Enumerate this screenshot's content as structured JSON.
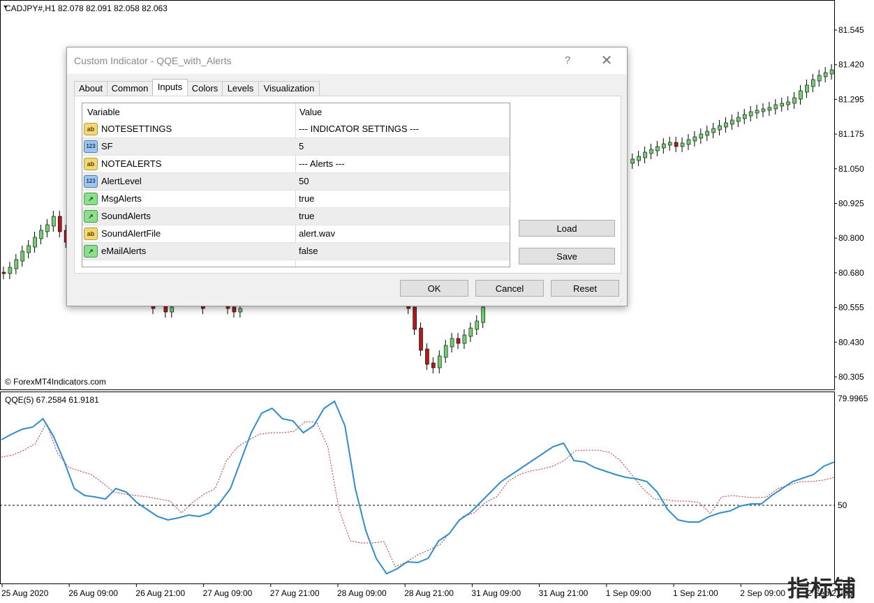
{
  "chart": {
    "header": "CADJPY#,H1  82.078 82.091 82.058 82.063",
    "watermark": "© ForexMT4Indicators.com",
    "price_axis": [
      "81.545",
      "81.420",
      "81.295",
      "81.175",
      "81.050",
      "80.925",
      "80.800",
      "80.680",
      "80.555",
      "80.430",
      "80.305"
    ],
    "indicator_header": "QQE(5) 67.2584 61.9181",
    "indicator_top_value": "79.9965",
    "indicator_level": "50",
    "time_axis": [
      "25 Aug 2020",
      "26 Aug 09:00",
      "26 Aug 21:00",
      "27 Aug 09:00",
      "27 Aug 21:00",
      "28 Aug 09:00",
      "28 Aug 21:00",
      "31 Aug 09:00",
      "31 Aug 21:00",
      "1 Sep 09:00",
      "1 Sep 21:00",
      "2 Sep 09:00",
      "2 Sep 21:00"
    ],
    "colors": {
      "bull": "#6fcf6f",
      "bear": "#b01c1c",
      "qqe_line": "#2f8ccf",
      "qqe_signal": "#c0282d"
    }
  },
  "dialog": {
    "title": "Custom Indicator - QQE_with_Alerts",
    "help": "?",
    "close": "✕",
    "tabs": [
      "About",
      "Common",
      "Inputs",
      "Colors",
      "Levels",
      "Visualization"
    ],
    "active_tab": "Inputs",
    "columns": {
      "variable": "Variable",
      "value": "Value"
    },
    "rows": [
      {
        "icon": "ab",
        "name": "NOTESETTINGS",
        "value": "--- INDICATOR SETTINGS ---"
      },
      {
        "icon": "123",
        "name": "SF",
        "value": "5"
      },
      {
        "icon": "ab",
        "name": "NOTEALERTS",
        "value": "--- Alerts ---"
      },
      {
        "icon": "123",
        "name": "AlertLevel",
        "value": "50"
      },
      {
        "icon": "bool",
        "name": "MsgAlerts",
        "value": "true"
      },
      {
        "icon": "bool",
        "name": "SoundAlerts",
        "value": "true"
      },
      {
        "icon": "ab",
        "name": "SoundAlertFile",
        "value": "alert.wav"
      },
      {
        "icon": "bool",
        "name": "eMailAlerts",
        "value": "false"
      }
    ],
    "buttons": {
      "load": "Load",
      "save": "Save",
      "ok": "OK",
      "cancel": "Cancel",
      "reset": "Reset"
    }
  },
  "site_watermark": "指标铺"
}
